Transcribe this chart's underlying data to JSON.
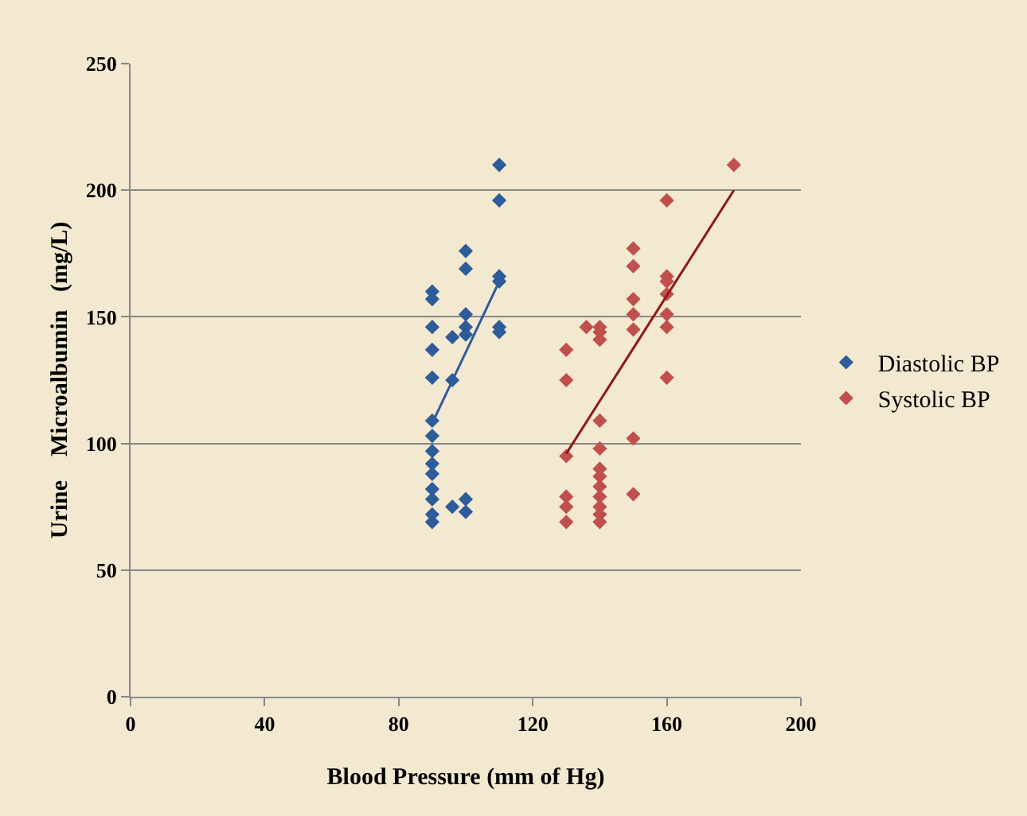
{
  "chart_data": {
    "type": "scatter",
    "xlabel": "Blood Pressure (mm of Hg)",
    "ylabel": "Urine    Microalbumin   (mg/L)",
    "xlim": [
      0,
      200
    ],
    "xticks": [
      0,
      40,
      80,
      120,
      160,
      200
    ],
    "ylim": [
      0,
      250
    ],
    "yticks": [
      0,
      50,
      100,
      150,
      200,
      250
    ],
    "grid": "y",
    "legend": "right",
    "marker": "diamond",
    "series": [
      {
        "name": "Diastolic BP",
        "color": "#2e5c9a",
        "x": [
          90,
          90,
          90,
          90,
          90,
          90,
          90,
          90,
          90,
          90,
          90,
          90,
          90,
          90,
          96,
          96,
          96,
          100,
          100,
          100,
          100,
          100,
          100,
          100,
          110,
          110,
          110,
          110,
          110,
          110
        ],
        "values": [
          160,
          157,
          146,
          137,
          126,
          109,
          103,
          97,
          92,
          88,
          82,
          78,
          72,
          69,
          142,
          125,
          75,
          176,
          169,
          151,
          146,
          143,
          78,
          73,
          210,
          196,
          166,
          164,
          146,
          144
        ]
      },
      {
        "name": "Systolic BP",
        "color": "#c0504d",
        "x": [
          130,
          130,
          130,
          130,
          130,
          130,
          136,
          140,
          140,
          140,
          140,
          140,
          140,
          140,
          140,
          140,
          140,
          140,
          140,
          150,
          150,
          150,
          150,
          150,
          150,
          150,
          160,
          160,
          160,
          160,
          160,
          160,
          160,
          180
        ],
        "values": [
          137,
          125,
          95,
          79,
          75,
          69,
          146,
          146,
          144,
          141,
          109,
          98,
          90,
          87,
          83,
          79,
          75,
          72,
          69,
          177,
          170,
          157,
          151,
          145,
          102,
          80,
          196,
          166,
          164,
          159,
          151,
          146,
          126,
          210
        ]
      },
      {
        "type": "line",
        "color": "#2e5c9a",
        "x": [
          90,
          110
        ],
        "values": [
          108,
          164
        ],
        "marker": "none"
      },
      {
        "type": "line",
        "color": "#8b1a1a",
        "x": [
          130,
          180
        ],
        "values": [
          96,
          200
        ],
        "marker": "none"
      }
    ]
  }
}
